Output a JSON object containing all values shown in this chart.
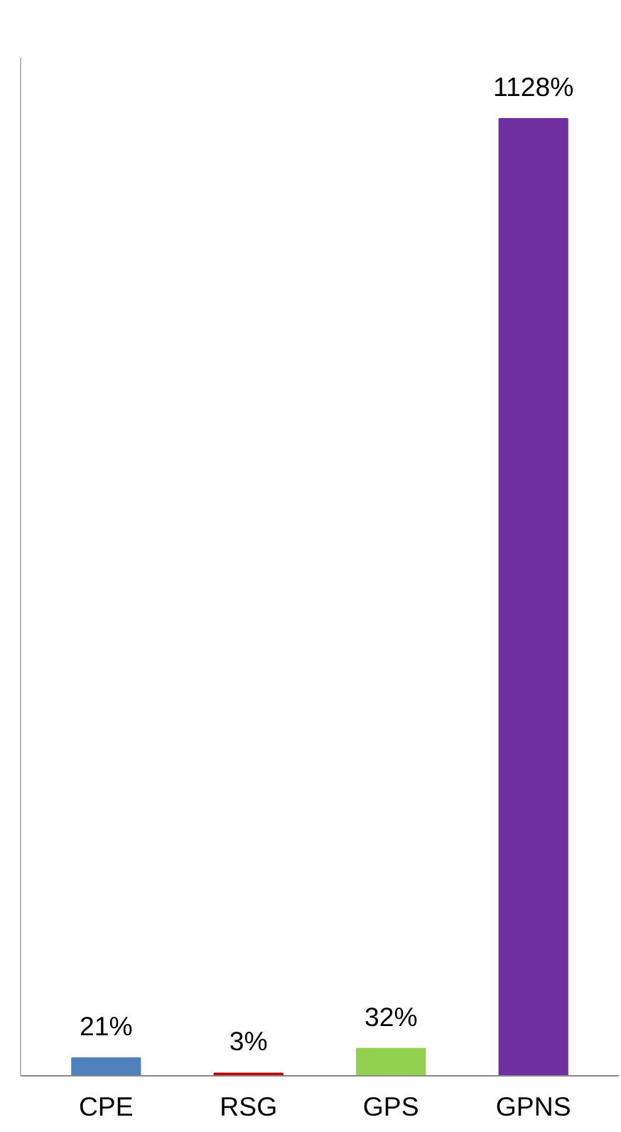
{
  "chart_data": {
    "type": "bar",
    "categories": [
      "CPE",
      "RSG",
      "GPS",
      "GPNS"
    ],
    "values": [
      21,
      3,
      32,
      1128
    ],
    "colors": [
      "#4f81bd",
      "#c00000",
      "#92d050",
      "#7030a0"
    ],
    "value_labels": [
      "21%",
      "3%",
      "32%",
      "1128%"
    ],
    "ylim": [
      0,
      1200
    ],
    "tick_labels": "x",
    "grid": false
  }
}
